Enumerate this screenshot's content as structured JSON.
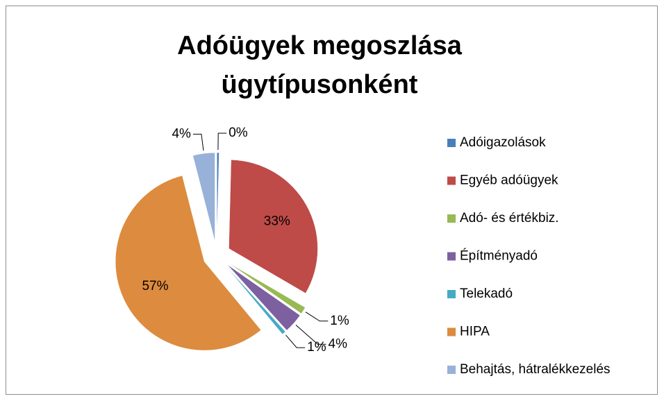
{
  "chart_data": {
    "type": "pie",
    "title": "Adóügyek megoszlása ügytípusonként",
    "categories": [
      "Adóigazolások",
      "Egyéb adóügyek",
      "Adó- és értékbiz.",
      "Építményadó",
      "Telekadó",
      "HIPA",
      "Behajtás, hátralékkezelés"
    ],
    "values": [
      0.4,
      33,
      1.3,
      3.6,
      0.7,
      57,
      4
    ],
    "value_labels": [
      "0%",
      "33%",
      "1%",
      "4%",
      "1%",
      "57%",
      "4%"
    ],
    "colors": [
      "#4a7ebb",
      "#be4b48",
      "#98b954",
      "#7d60a0",
      "#46aac5",
      "#dd8b3e",
      "#98b1d8"
    ],
    "legend": "right"
  }
}
